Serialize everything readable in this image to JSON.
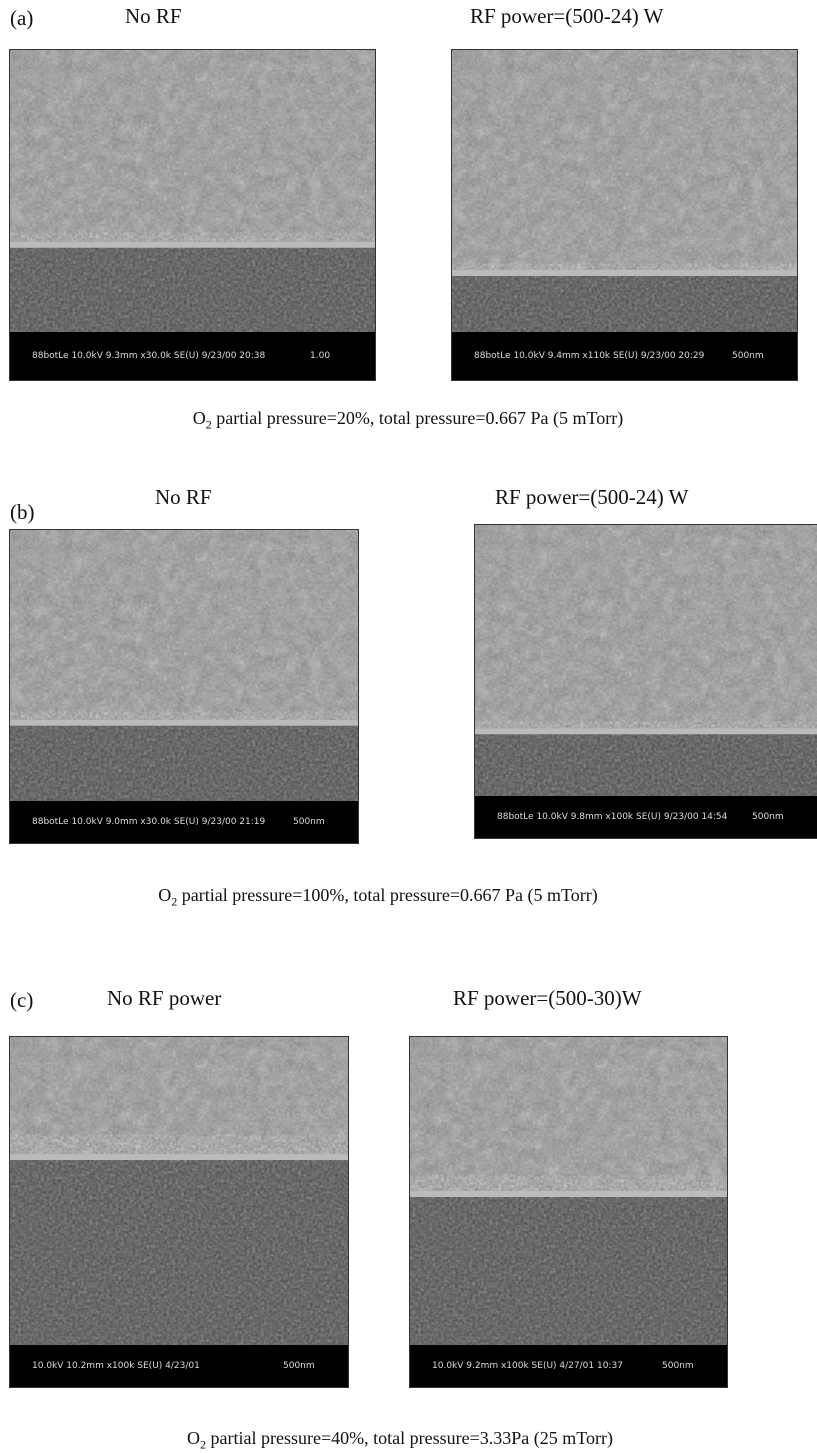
{
  "panels": [
    {
      "label": "(a)",
      "images": [
        {
          "title": "No RF",
          "info": "88botLe 10.0kV 9.3mm x30.0k SE(U) 9/23/00 20:38",
          "scale": "1.00"
        },
        {
          "title": "RF power=(500-24) W",
          "info": "88botLe 10.0kV 9.4mm x110k SE(U) 9/23/00 20:29",
          "scale": "500nm"
        }
      ],
      "caption": {
        "pre": "O",
        "sub": "2",
        "rest": " partial pressure=20%, total pressure=0.667 Pa (5 mTorr)"
      }
    },
    {
      "label": "(b)",
      "images": [
        {
          "title": "No RF",
          "info": "88botLe 10.0kV 9.0mm x30.0k SE(U) 9/23/00 21:19",
          "scale": "500nm"
        },
        {
          "title": "RF power=(500-24) W",
          "info": "88botLe 10.0kV 9.8mm x100k SE(U) 9/23/00 14:54",
          "scale": "500nm"
        }
      ],
      "caption": {
        "pre": "O",
        "sub": "2",
        "rest": " partial pressure=100%, total pressure=0.667 Pa (5 mTorr)"
      }
    },
    {
      "label": "(c)",
      "images": [
        {
          "title": "No RF power",
          "info": "10.0kV 10.2mm x100k SE(U) 4/23/01",
          "scale": "500nm"
        },
        {
          "title": "RF power=(500-30)W",
          "info": "10.0kV 9.2mm x100k SE(U) 4/27/01 10:37",
          "scale": "500nm"
        }
      ],
      "caption": {
        "pre": "O",
        "sub": "2",
        "rest": " partial pressure=40%, total pressure=3.33Pa (25 mTorr)"
      }
    }
  ]
}
